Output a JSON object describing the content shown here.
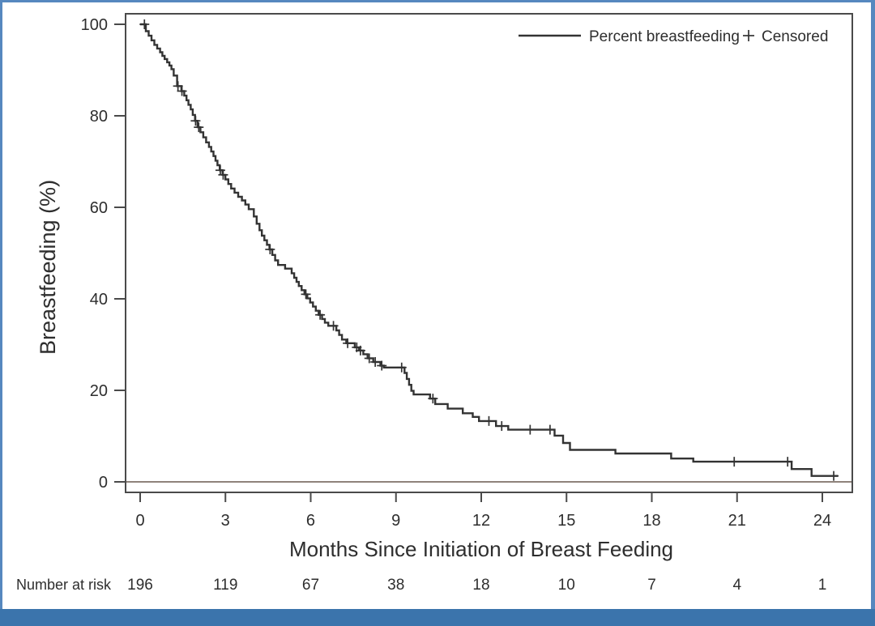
{
  "figure": {
    "description": "Kaplan-Meier style curve of breastfeeding duration",
    "accent_border_color": "#5688bf",
    "bottom_bar_color": "#3b74ac"
  },
  "chart_data": {
    "type": "line",
    "subtype": "kaplan-meier-step",
    "title": "",
    "xlabel": "Months Since Initiation of Breast Feeding",
    "ylabel": "Breastfeeding (%)",
    "xlim": [
      0,
      24
    ],
    "ylim": [
      0,
      100
    ],
    "x_ticks": [
      0,
      3,
      6,
      9,
      12,
      15,
      18,
      21,
      24
    ],
    "y_ticks": [
      0,
      20,
      40,
      60,
      80,
      100
    ],
    "grid": false,
    "legend_position": "top-right-inside",
    "legend": [
      {
        "label": "Percent breastfeeding",
        "marker": "line"
      },
      {
        "label": "Censored",
        "marker": "plus"
      }
    ],
    "reference_line_y": 0,
    "series": [
      {
        "name": "Percent breastfeeding",
        "step": true,
        "end_x": 24.55,
        "points": [
          [
            0,
            100
          ],
          [
            0.2,
            98.5
          ],
          [
            0.3,
            97.5
          ],
          [
            0.4,
            96.5
          ],
          [
            0.5,
            95.5
          ],
          [
            0.6,
            94.7
          ],
          [
            0.7,
            93.9
          ],
          [
            0.78,
            93.1
          ],
          [
            0.86,
            92.4
          ],
          [
            0.95,
            91.7
          ],
          [
            1.03,
            91.0
          ],
          [
            1.1,
            90.2
          ],
          [
            1.18,
            88.8
          ],
          [
            1.3,
            86.5
          ],
          [
            1.45,
            85.4
          ],
          [
            1.55,
            84.4
          ],
          [
            1.63,
            83.4
          ],
          [
            1.7,
            82.4
          ],
          [
            1.78,
            81.4
          ],
          [
            1.85,
            80.2
          ],
          [
            1.93,
            78.9
          ],
          [
            2.02,
            77.5
          ],
          [
            2.12,
            76.4
          ],
          [
            2.22,
            75.3
          ],
          [
            2.32,
            74.2
          ],
          [
            2.42,
            73.2
          ],
          [
            2.5,
            72.2
          ],
          [
            2.58,
            71.2
          ],
          [
            2.65,
            70.2
          ],
          [
            2.72,
            69.2
          ],
          [
            2.8,
            68.1
          ],
          [
            2.9,
            67.1
          ],
          [
            3.0,
            66.1
          ],
          [
            3.1,
            65.1
          ],
          [
            3.2,
            64.1
          ],
          [
            3.32,
            63.2
          ],
          [
            3.45,
            62.3
          ],
          [
            3.58,
            61.5
          ],
          [
            3.7,
            60.6
          ],
          [
            3.82,
            59.6
          ],
          [
            4.0,
            58.0
          ],
          [
            4.1,
            56.4
          ],
          [
            4.2,
            55.0
          ],
          [
            4.28,
            53.8
          ],
          [
            4.37,
            52.8
          ],
          [
            4.46,
            51.8
          ],
          [
            4.55,
            50.8
          ],
          [
            4.65,
            49.6
          ],
          [
            4.75,
            48.4
          ],
          [
            4.85,
            47.4
          ],
          [
            5.1,
            46.6
          ],
          [
            5.33,
            45.6
          ],
          [
            5.42,
            44.6
          ],
          [
            5.5,
            43.7
          ],
          [
            5.58,
            42.8
          ],
          [
            5.68,
            41.9
          ],
          [
            5.78,
            41.0
          ],
          [
            5.88,
            40.1
          ],
          [
            5.98,
            39.2
          ],
          [
            6.08,
            38.3
          ],
          [
            6.18,
            37.4
          ],
          [
            6.28,
            36.5
          ],
          [
            6.4,
            35.6
          ],
          [
            6.5,
            34.8
          ],
          [
            6.62,
            34.1
          ],
          [
            6.9,
            33.1
          ],
          [
            7.0,
            32.1
          ],
          [
            7.1,
            31.1
          ],
          [
            7.25,
            30.3
          ],
          [
            7.55,
            29.4
          ],
          [
            7.7,
            28.7
          ],
          [
            7.85,
            27.9
          ],
          [
            8.0,
            27.0
          ],
          [
            8.2,
            26.2
          ],
          [
            8.45,
            25.4
          ],
          [
            8.57,
            25.0
          ],
          [
            9.3,
            23.8
          ],
          [
            9.38,
            22.5
          ],
          [
            9.46,
            21.2
          ],
          [
            9.54,
            19.9
          ],
          [
            9.62,
            19.1
          ],
          [
            10.2,
            18.2
          ],
          [
            10.38,
            17.0
          ],
          [
            10.82,
            16.0
          ],
          [
            11.35,
            15.0
          ],
          [
            11.7,
            14.2
          ],
          [
            11.92,
            13.3
          ],
          [
            12.52,
            12.2
          ],
          [
            12.95,
            11.4
          ],
          [
            14.58,
            10.1
          ],
          [
            14.88,
            8.5
          ],
          [
            15.12,
            7.0
          ],
          [
            16.72,
            6.2
          ],
          [
            18.68,
            5.1
          ],
          [
            19.46,
            4.4
          ],
          [
            22.92,
            2.8
          ],
          [
            23.62,
            1.3
          ]
        ]
      }
    ],
    "censored": [
      [
        0.15,
        100
      ],
      [
        1.33,
        86.5
      ],
      [
        1.47,
        85.4
      ],
      [
        1.95,
        78.9
      ],
      [
        2.06,
        77.5
      ],
      [
        2.82,
        68.1
      ],
      [
        2.92,
        67.1
      ],
      [
        4.57,
        50.8
      ],
      [
        5.83,
        41.0
      ],
      [
        6.33,
        36.5
      ],
      [
        6.8,
        34.1
      ],
      [
        7.3,
        30.3
      ],
      [
        7.62,
        29.4
      ],
      [
        7.75,
        28.7
      ],
      [
        8.06,
        27.0
      ],
      [
        8.27,
        26.2
      ],
      [
        8.5,
        25.4
      ],
      [
        9.2,
        25.0
      ],
      [
        10.3,
        18.2
      ],
      [
        12.27,
        13.3
      ],
      [
        12.72,
        12.2
      ],
      [
        13.72,
        11.4
      ],
      [
        14.42,
        11.4
      ],
      [
        20.9,
        4.4
      ],
      [
        22.78,
        4.4
      ],
      [
        24.4,
        1.3
      ]
    ],
    "number_at_risk": {
      "label": "Number at risk",
      "x": [
        0,
        3,
        6,
        9,
        12,
        15,
        18,
        21,
        24
      ],
      "values": [
        196,
        119,
        67,
        38,
        18,
        10,
        7,
        4,
        1
      ]
    },
    "colors": {
      "curve": "#333333",
      "frame": "#4a4a4a",
      "text": "#2e2e2e",
      "reference_line": "#8f837b"
    }
  }
}
